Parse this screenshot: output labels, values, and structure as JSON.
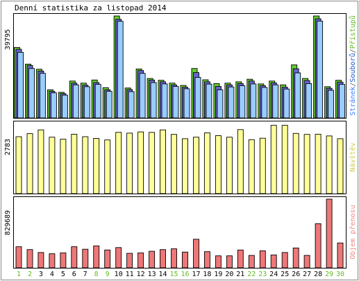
{
  "chart_data": {
    "type": "bar",
    "title": "Denní statistika za listopad 2014",
    "categories": [
      "1",
      "2",
      "3",
      "4",
      "5",
      "6",
      "7",
      "8",
      "9",
      "10",
      "11",
      "12",
      "13",
      "14",
      "15",
      "16",
      "17",
      "18",
      "19",
      "20",
      "21",
      "22",
      "23",
      "24",
      "25",
      "26",
      "27",
      "28",
      "29",
      "30"
    ],
    "weekend_days": [
      "1",
      "2",
      "8",
      "9",
      "15",
      "16",
      "22",
      "23",
      "29",
      "30"
    ],
    "panels": [
      {
        "id": "hits",
        "ymax_label": "39795",
        "side_label": {
          "parts": [
            {
              "text": "Stránek",
              "color": "#4080ff"
            },
            {
              "text": "/",
              "color": "#555555"
            },
            {
              "text": "Souborů",
              "color": "#2255cc"
            },
            {
              "text": "/",
              "color": "#555555"
            },
            {
              "text": "Přístupů",
              "color": "#66bb22"
            }
          ]
        },
        "ymax": 39795,
        "series": [
          {
            "name": "Přístupů",
            "color": "#66cc33",
            "values": [
              27500,
              21000,
              19000,
              11000,
              10000,
              14400,
              13600,
              14800,
              11800,
              39795,
              11700,
              19100,
              15400,
              14700,
              13600,
              12700,
              19300,
              14900,
              13400,
              13600,
              14100,
              15100,
              13300,
              14400,
              12900,
              20700,
              15400,
              39795,
              12200,
              14700
            ]
          },
          {
            "name": "Souborů",
            "color": "#6666cc",
            "values": [
              26800,
              20500,
              18300,
              10400,
              9500,
              13600,
              12800,
              13800,
              11000,
              38500,
              11100,
              18500,
              14800,
              14100,
              12900,
              12000,
              17700,
              14100,
              12300,
              12900,
              13400,
              14400,
              12600,
              13700,
              12000,
              19200,
              14600,
              38700,
              11600,
              14000
            ]
          },
          {
            "name": "Stránek",
            "color": "#99ccff",
            "values": [
              25600,
              19300,
              17400,
              9800,
              8900,
              12900,
              12200,
              13100,
              10400,
              37700,
              10300,
              17400,
              13800,
              13300,
              12300,
              11400,
              15800,
              13200,
              11000,
              12100,
              12600,
              13300,
              11900,
              12900,
              11300,
              17600,
              13400,
              37800,
              10800,
              13100
            ]
          }
        ]
      },
      {
        "id": "visits",
        "ymax_label": "2783",
        "side_label": {
          "parts": [
            {
              "text": "Návštěv",
              "color": "#cccc55"
            }
          ]
        },
        "ymax": 2783,
        "series": [
          {
            "name": "Návštěv",
            "color": "#ffff99",
            "values": [
              2260,
              2380,
              2530,
              2240,
              2160,
              2360,
              2260,
              2190,
              2130,
              2430,
              2400,
              2450,
              2430,
              2530,
              2350,
              2180,
              2240,
              2410,
              2300,
              2240,
              2540,
              2140,
              2200,
              2710,
              2710,
              2390,
              2350,
              2360,
              2290,
              2180
            ]
          }
        ]
      },
      {
        "id": "transfer",
        "ymax_label": "829689",
        "side_label": {
          "parts": [
            {
              "text": "Objem přenosu",
              "color": "#ee8888"
            }
          ]
        },
        "ymax": 829689,
        "series": [
          {
            "name": "Objem přenosu",
            "color": "#ee7777",
            "values": [
              255000,
              220000,
              185000,
              170000,
              180000,
              255000,
              225000,
              265000,
              215000,
              245000,
              175000,
              180000,
              200000,
              220000,
              230000,
              190000,
              345000,
              195000,
              145000,
              145000,
              215000,
              150000,
              205000,
              155000,
              185000,
              240000,
              150000,
              533000,
              829689,
              300000
            ]
          }
        ]
      }
    ]
  }
}
